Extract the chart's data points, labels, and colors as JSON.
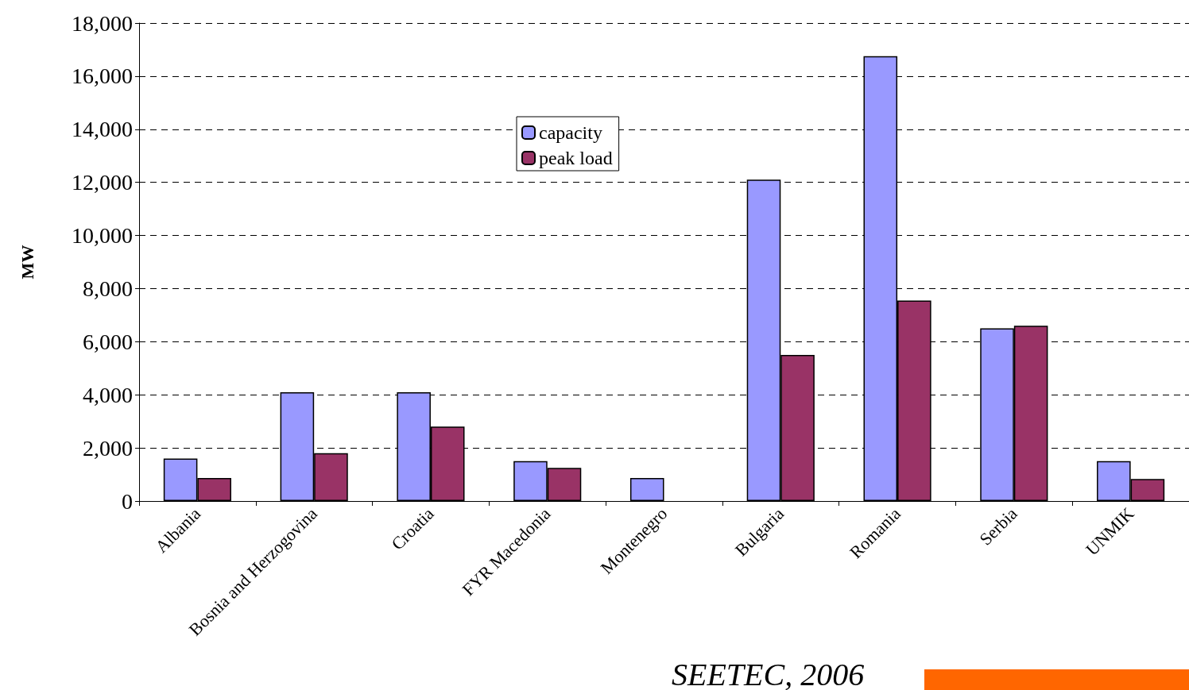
{
  "chart_data": {
    "type": "bar",
    "ylabel": "MW",
    "categories": [
      "Albania",
      "Bosnia and Herzogovina",
      "Croatia",
      "FYR Macedonia",
      "Montenegro",
      "Bulgaria",
      "Romania",
      "Serbia",
      "UNMIK"
    ],
    "series": [
      {
        "name": "capacity",
        "color": "#9999ff",
        "values": [
          1600,
          4100,
          4100,
          1500,
          870,
          12100,
          16750,
          6500,
          1500
        ]
      },
      {
        "name": "peak load",
        "color": "#993366",
        "values": [
          870,
          1800,
          2800,
          1250,
          null,
          5500,
          7550,
          6600,
          830
        ]
      }
    ],
    "ylim": [
      0,
      18000
    ],
    "yticks": [
      {
        "value": 0,
        "label": "0"
      },
      {
        "value": 2000,
        "label": "2,000"
      },
      {
        "value": 4000,
        "label": "4,000"
      },
      {
        "value": 6000,
        "label": "6,000"
      },
      {
        "value": 8000,
        "label": "8,000"
      },
      {
        "value": 10000,
        "label": "10,000"
      },
      {
        "value": 12000,
        "label": "12,000"
      },
      {
        "value": 14000,
        "label": "14,000"
      },
      {
        "value": 16000,
        "label": "16,000"
      },
      {
        "value": 18000,
        "label": "18,000"
      }
    ],
    "grid": "y",
    "legend": "top",
    "annotations": [
      "SEETEC, 2006"
    ]
  }
}
